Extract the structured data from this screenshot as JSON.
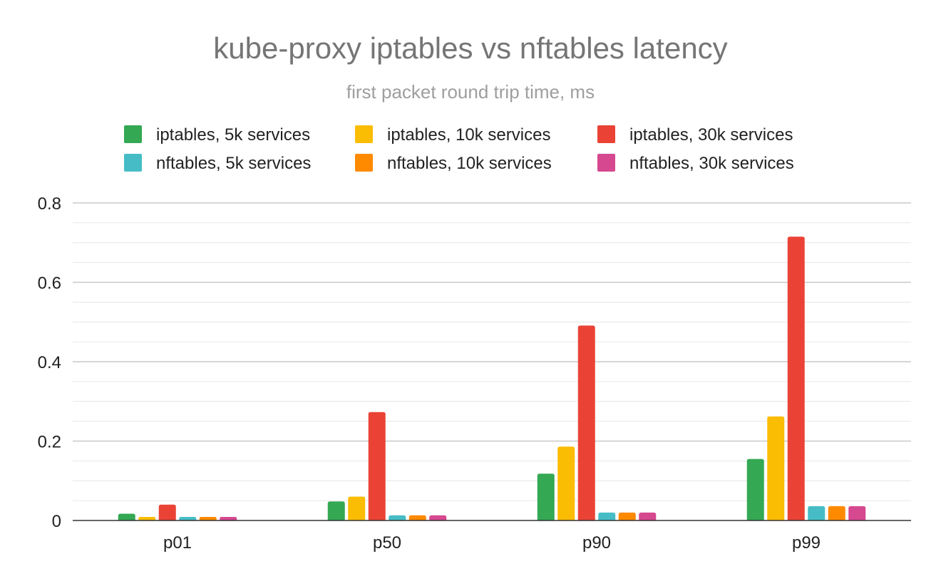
{
  "chart_data": {
    "type": "bar",
    "title": "kube-proxy iptables vs nftables latency",
    "subtitle": "first packet round trip time, ms",
    "xlabel": "",
    "ylabel": "",
    "categories": [
      "p01",
      "p50",
      "p90",
      "p99"
    ],
    "ylim": [
      0,
      0.8
    ],
    "yticks": [
      0,
      0.2,
      0.4,
      0.6,
      0.8
    ],
    "ytick_labels": [
      "0",
      "0.2",
      "0.4",
      "0.6",
      "0.8"
    ],
    "grid": true,
    "minor_grid": true,
    "legend_position": "top",
    "series": [
      {
        "name": "iptables, 5k services",
        "color": "#34a853",
        "values": [
          0.017,
          0.048,
          0.118,
          0.155
        ]
      },
      {
        "name": "iptables, 10k services",
        "color": "#fbbc04",
        "values": [
          0.009,
          0.06,
          0.186,
          0.262
        ]
      },
      {
        "name": "iptables, 30k services",
        "color": "#ea4335",
        "values": [
          0.04,
          0.273,
          0.491,
          0.715
        ]
      },
      {
        "name": "nftables, 5k services",
        "color": "#46bdc6",
        "values": [
          0.009,
          0.013,
          0.02,
          0.036
        ]
      },
      {
        "name": "nftables, 10k services",
        "color": "#ff8a00",
        "values": [
          0.009,
          0.013,
          0.02,
          0.036
        ]
      },
      {
        "name": "nftables, 30k services",
        "color": "#d6488f",
        "values": [
          0.009,
          0.013,
          0.02,
          0.036
        ]
      }
    ]
  }
}
